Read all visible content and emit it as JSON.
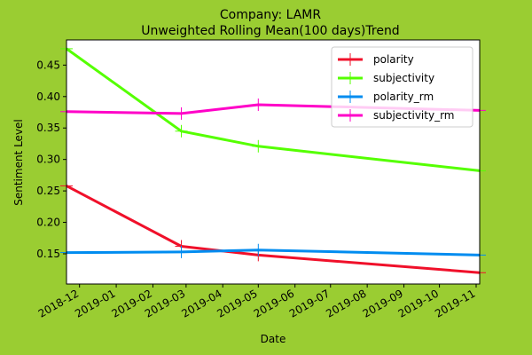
{
  "chart_data": {
    "type": "line",
    "title": "Company: LAMR",
    "subtitle": "Unweighted Rolling Mean(100 days)Trend",
    "xlabel": "Date",
    "ylabel": "Sentiment Level",
    "x_ticks": [
      "2018-12",
      "2019-01",
      "2019-02",
      "2019-03",
      "2019-04",
      "2019-05",
      "2019-06",
      "2019-07",
      "2019-08",
      "2019-09",
      "2019-10",
      "2019-11"
    ],
    "y_ticks": [
      "0.15",
      "0.20",
      "0.25",
      "0.30",
      "0.35",
      "0.40",
      "0.45"
    ],
    "xlim": [
      "2018-11-20",
      "2019-11-04"
    ],
    "ylim": [
      0.102,
      0.49
    ],
    "grid": false,
    "legend_placement": "top-right",
    "background_color": "#9acd32",
    "plot_background_color": "#ffffff",
    "series": [
      {
        "name": "polarity",
        "color": "#f0102a",
        "x": [
          "2018-11-20",
          "2019-02-25",
          "2019-05-01",
          "2019-11-04"
        ],
        "values": [
          0.258,
          0.162,
          0.148,
          0.12
        ]
      },
      {
        "name": "subjectivity",
        "color": "#55ff00",
        "x": [
          "2018-11-20",
          "2019-02-25",
          "2019-05-01",
          "2019-11-04"
        ],
        "values": [
          0.476,
          0.345,
          0.321,
          0.282
        ]
      },
      {
        "name": "polarity_rm",
        "color": "#008cf0",
        "x": [
          "2018-11-20",
          "2019-02-25",
          "2019-05-01",
          "2019-11-04"
        ],
        "values": [
          0.152,
          0.153,
          0.156,
          0.148
        ]
      },
      {
        "name": "subjectivity_rm",
        "color": "#ff00c8",
        "x": [
          "2018-11-20",
          "2019-02-25",
          "2019-05-01",
          "2019-11-04"
        ],
        "values": [
          0.376,
          0.373,
          0.387,
          0.378
        ]
      }
    ]
  }
}
